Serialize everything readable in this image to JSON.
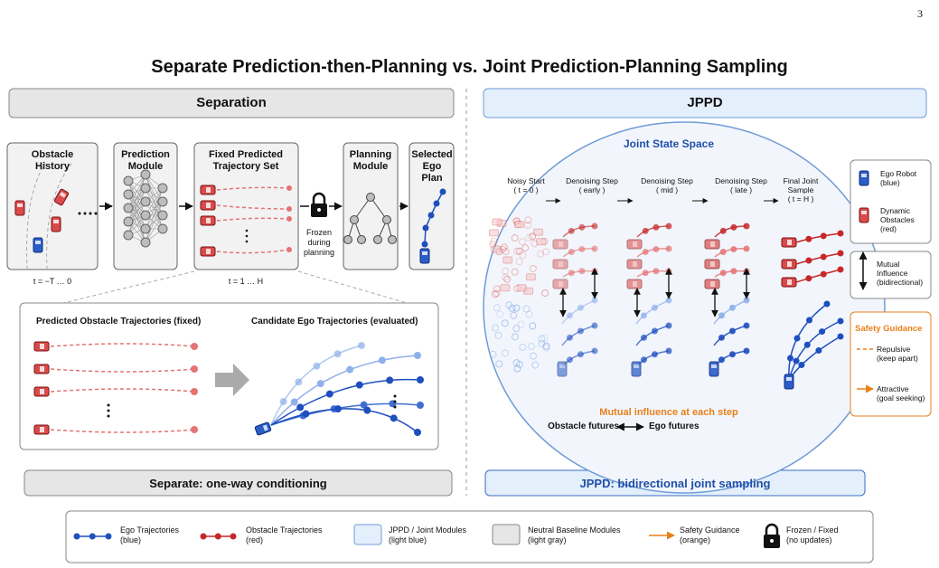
{
  "page_number": "3",
  "title": "Separate Prediction-then-Planning vs. Joint Prediction-Planning Sampling",
  "separation": {
    "header": "Separation",
    "modules": [
      "Obstacle History",
      "Prediction Module",
      "Fixed Predicted Trajectory Set",
      "Planning Module",
      "Selected Ego Plan"
    ],
    "history_time": "t = −T … 0",
    "prediction_time": "t = 1 … H",
    "lock_label": "Frozen during planning",
    "zoom": {
      "obstacle_title": "Predicted Obstacle Trajectories (fixed)",
      "ego_title": "Candidate Ego Trajectories (evaluated)"
    },
    "footer": "Separate: one-way conditioning"
  },
  "jppd": {
    "header": "JPPD",
    "space_title": "Joint State Space",
    "steps": [
      {
        "name": "Noisy Start",
        "time": "( t = 0 )"
      },
      {
        "name": "Denoising Step",
        "time": "( early )"
      },
      {
        "name": "Denoising Step",
        "time": "( mid )"
      },
      {
        "name": "Denoising Step",
        "time": "( late )"
      },
      {
        "name": "Final Joint Sample",
        "time": "( t = H )"
      }
    ],
    "mutual_note": "Mutual influence at each step",
    "obstacle_futures": "Obstacle futures",
    "ego_futures": "Ego futures",
    "footer": "JPPD: bidirectional joint sampling"
  },
  "side_legend": {
    "ego": {
      "name": "Ego Robot",
      "note": "(blue)"
    },
    "obstacles": {
      "name": "Dynamic Obstacles",
      "note": "(red)"
    },
    "mutual": {
      "name": "Mutual Influence",
      "note": "(bidirectional)"
    },
    "safety": {
      "title": "Safety Guidance",
      "repulsive": {
        "name": "Repulsive",
        "note": "(keep apart)"
      },
      "attractive": {
        "name": "Attractive",
        "note": "(goal seeking)"
      }
    }
  },
  "legend": [
    {
      "name": "Ego Trajectories",
      "note": "(blue)"
    },
    {
      "name": "Obstacle Trajectories",
      "note": "(red)"
    },
    {
      "name": "JPPD / Joint Modules",
      "note": "(light blue)"
    },
    {
      "name": "Neutral Baseline Modules",
      "note": "(light gray)"
    },
    {
      "name": "Safety Guidance",
      "note": "(orange)"
    },
    {
      "name": "Frozen / Fixed",
      "note": "(no updates)"
    }
  ]
}
